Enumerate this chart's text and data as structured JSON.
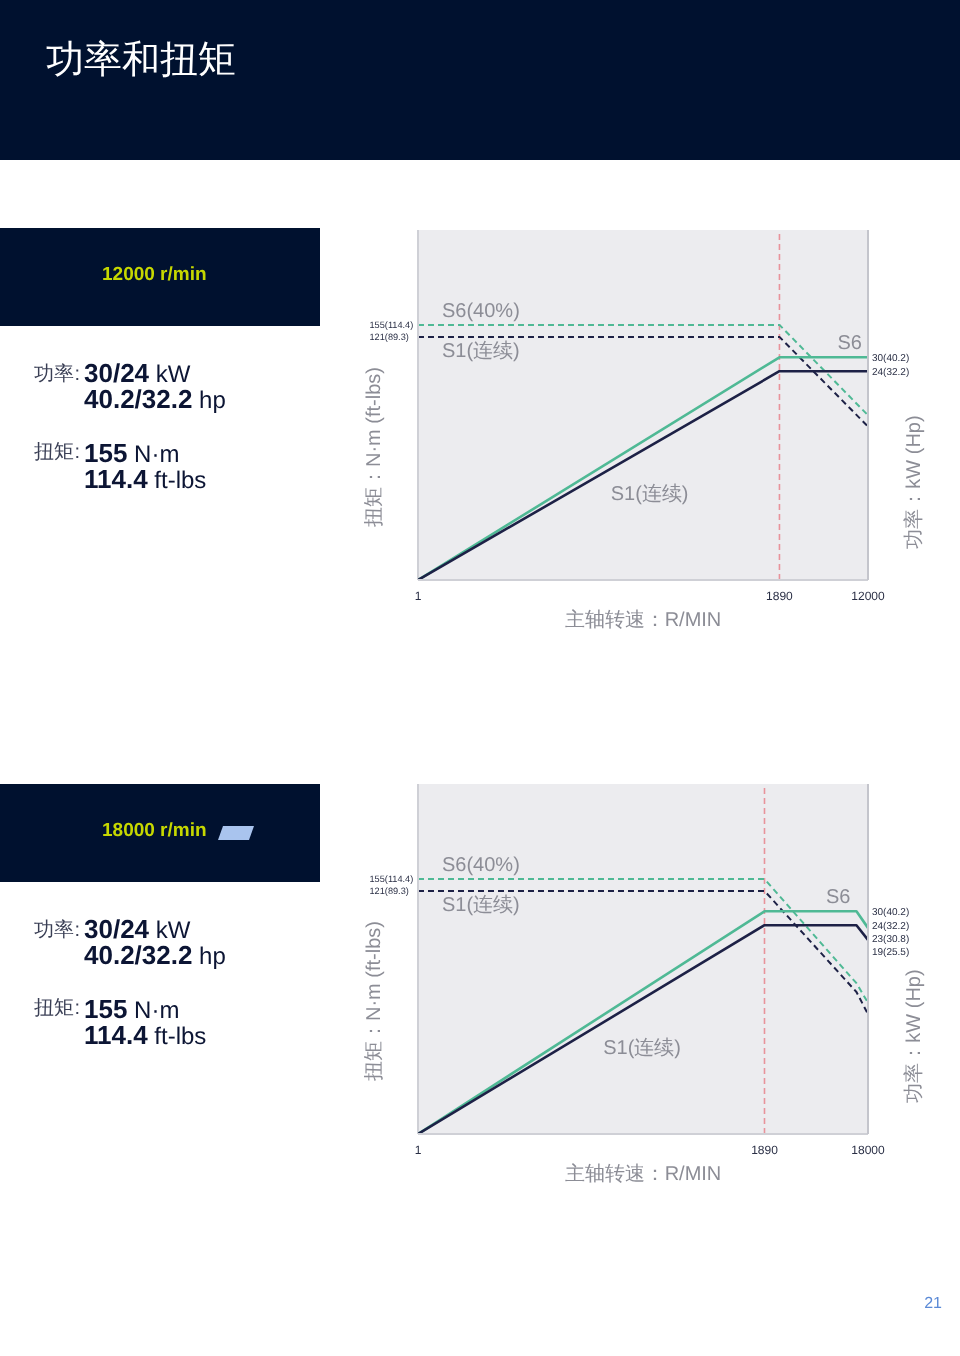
{
  "chart_data": [
    {
      "type": "other",
      "title": "功率和扭矩",
      "annotations": [
        "21"
      ]
    },
    {
      "type": "other",
      "title": "12000 r/min",
      "annotations": [
        "功率:",
        "30/24 kW",
        "40.2/32.2 hp",
        "扭矩:",
        "155 N·m",
        "114.4 ft-lbs"
      ]
    },
    {
      "type": "line",
      "xlabel": "主轴转速：R/MIN",
      "ylabel": "扭矩：N·m (ft-lbs)",
      "log": "xy",
      "x": [
        1,
        1890,
        12000
      ],
      "xlim": [
        1,
        12000
      ],
      "xticks": [
        1,
        1890,
        12000
      ],
      "ylim": [
        0.8,
        1100
      ],
      "yticks": [
        155,
        121
      ],
      "annotations": [
        "(114.4)",
        "(89.3)"
      ],
      "series": [
        {
          "name": "S6(40%)",
          "color": "#4fb995",
          "line_style": "dashed",
          "values": [
            155,
            155,
            24
          ]
        },
        {
          "name": "S1(连续)",
          "color": "#1d2146",
          "line_style": "dashed",
          "values": [
            121,
            121,
            19
          ]
        }
      ],
      "ref_lines": [
        {
          "axis": "x",
          "value": 1890,
          "color": "#e8939b",
          "line_style": "dashed"
        }
      ]
    },
    {
      "type": "line",
      "ylabel": "功率：kW (Hp)",
      "log": "xy",
      "tick_labels": "y",
      "x": [
        1,
        1890,
        12000
      ],
      "xlim": [
        1,
        12000
      ],
      "ylim": [
        0.85,
        230
      ],
      "yticks": [
        30,
        24
      ],
      "annotations": [
        "(40.2)",
        "(32.2)"
      ],
      "series": [
        {
          "name": "S6",
          "color": "#4fb995",
          "values": [
            0.85,
            30,
            30
          ]
        },
        {
          "name": "S1(连续)",
          "color": "#1d2146",
          "values": [
            0.85,
            24,
            24
          ]
        }
      ]
    },
    {
      "type": "other",
      "title": "18000 r/min",
      "annotations": [
        "功率:",
        "30/24 kW",
        "40.2/32.2 hp",
        "扭矩:",
        "155 N·m",
        "114.4 ft-lbs"
      ]
    },
    {
      "type": "line",
      "xlabel": "主轴转速：R/MIN",
      "ylabel": "扭矩：N·m (ft-lbs)",
      "log": "xy",
      "x": [
        1,
        1890,
        14000,
        18000
      ],
      "xlim": [
        1,
        18000
      ],
      "xticks": [
        1,
        1890,
        18000
      ],
      "ylim": [
        0.8,
        1100
      ],
      "yticks": [
        155,
        121
      ],
      "annotations": [
        "(114.4)",
        "(89.3)"
      ],
      "series": [
        {
          "name": "S6(40%)",
          "color": "#4fb995",
          "line_style": "dashed",
          "values": [
            155,
            155,
            18,
            12
          ]
        },
        {
          "name": "S1(连续)",
          "color": "#1d2146",
          "line_style": "dashed",
          "values": [
            121,
            121,
            15,
            9.5
          ]
        }
      ],
      "ref_lines": [
        {
          "axis": "x",
          "value": 1890,
          "color": "#e8939b",
          "line_style": "dashed"
        }
      ]
    },
    {
      "type": "line",
      "ylabel": "功率：kW (Hp)",
      "log": "xy",
      "tick_labels": "y",
      "x": [
        1,
        1890,
        14000,
        18000
      ],
      "xlim": [
        1,
        18000
      ],
      "ylim": [
        0.85,
        230
      ],
      "yticks": [
        30,
        24
      ],
      "annotations": [
        "(40.2)",
        "(32.2)"
      ],
      "series": [
        {
          "name": "S6",
          "color": "#4fb995",
          "values": [
            0.85,
            30,
            30,
            23
          ],
          "value_labels": [
            null,
            null,
            null,
            "23(30.8)"
          ]
        },
        {
          "name": "S1(连续)",
          "color": "#1d2146",
          "values": [
            0.85,
            24,
            24,
            19
          ],
          "value_labels": [
            null,
            null,
            null,
            "19(25.5)"
          ]
        }
      ]
    }
  ]
}
